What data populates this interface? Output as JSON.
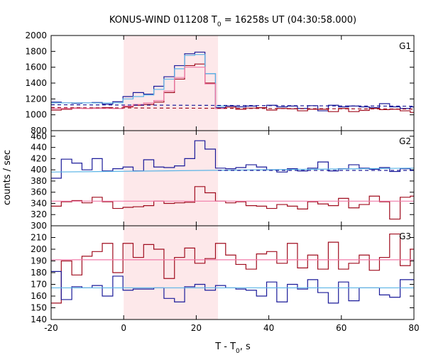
{
  "title": {
    "prefix": "KONUS-WIND 011208 T",
    "sub": "0",
    "suffix": " = 16258s UT (04:30:58.000)"
  },
  "xlabel": {
    "prefix": "T - T",
    "sub": "0",
    "suffix": ", s"
  },
  "ylabel": "counts / sec",
  "colors": {
    "pink_shade": "#fde8ea",
    "dark_blue": "#1a1a99",
    "dark_red": "#a00c1e",
    "light_blue": "#5ab4e6",
    "light_pink": "#f07aa8"
  },
  "chart_data": [
    {
      "type": "line",
      "panel": "G1",
      "x_range": [
        -20,
        80
      ],
      "ylim": [
        800,
        2000
      ],
      "yticks": [
        800,
        1000,
        1200,
        1400,
        1600,
        1800,
        2000
      ],
      "xticks": [
        -20,
        0,
        20,
        40,
        60,
        80
      ],
      "shaded_interval": [
        0,
        26
      ],
      "series": [
        {
          "color_key": "dark_blue",
          "step": true,
          "x": [
            -20,
            -17.2,
            -14.3,
            -11.5,
            -8.7,
            -5.9,
            -3.0,
            -0.2,
            2.6,
            5.5,
            8.3,
            11.1,
            14.0,
            16.8,
            19.6,
            22.4,
            25.3,
            28.1,
            30.9,
            33.7,
            36.6,
            39.4,
            42.2,
            45.1,
            47.9,
            50.7,
            53.5,
            56.4,
            59.2,
            62.0,
            64.9,
            67.7,
            70.5,
            73.3,
            76.2,
            79.0
          ],
          "y": [
            1160,
            1150,
            1145,
            1150,
            1155,
            1135,
            1165,
            1230,
            1280,
            1260,
            1360,
            1480,
            1620,
            1770,
            1790,
            1520,
            1090,
            1110,
            1100,
            1110,
            1090,
            1120,
            1100,
            1110,
            1080,
            1115,
            1050,
            1120,
            1100,
            1110,
            1100,
            1090,
            1140,
            1100,
            1080,
            1100
          ]
        },
        {
          "color_key": "dark_red",
          "step": true,
          "x": [
            -20,
            -17.2,
            -14.3,
            -11.5,
            -8.7,
            -5.9,
            -3.0,
            -0.2,
            2.6,
            5.5,
            8.3,
            11.1,
            14.0,
            16.8,
            19.6,
            22.4,
            25.3,
            28.1,
            30.9,
            33.7,
            36.6,
            39.4,
            42.2,
            45.1,
            47.9,
            50.7,
            53.5,
            56.4,
            59.2,
            62.0,
            64.9,
            67.7,
            70.5,
            73.3,
            76.2,
            79.0
          ],
          "y": [
            1060,
            1070,
            1085,
            1080,
            1085,
            1090,
            1080,
            1100,
            1120,
            1130,
            1160,
            1280,
            1450,
            1620,
            1640,
            1400,
            1080,
            1095,
            1070,
            1085,
            1090,
            1060,
            1080,
            1075,
            1050,
            1070,
            1070,
            1040,
            1080,
            1040,
            1055,
            1080,
            1065,
            1070,
            1050,
            1030
          ]
        },
        {
          "color_key": "light_blue",
          "step": true,
          "x": [
            -20,
            -17.2,
            -14.3,
            -11.5,
            -8.7,
            -5.9,
            -3.0,
            -0.2,
            2.6,
            5.5,
            8.3,
            11.1,
            14.0,
            16.8,
            19.6,
            22.4,
            25.3
          ],
          "y": [
            1150,
            1150,
            1150,
            1150,
            1150,
            1150,
            1150,
            1200,
            1230,
            1250,
            1320,
            1450,
            1580,
            1750,
            1760,
            1520,
            1110
          ]
        },
        {
          "color_key": "light_pink",
          "step": true,
          "x": [
            -20,
            -17.2,
            -14.3,
            -11.5,
            -8.7,
            -5.9,
            -3.0,
            -0.2,
            2.6,
            5.5,
            8.3,
            11.1,
            14.0,
            16.8,
            19.6,
            22.4,
            25.3
          ],
          "y": [
            1080,
            1080,
            1080,
            1080,
            1080,
            1080,
            1080,
            1110,
            1130,
            1150,
            1180,
            1300,
            1470,
            1600,
            1600,
            1390,
            1080
          ]
        },
        {
          "color_key": "dark_blue",
          "dashed": true,
          "x": [
            -20,
            80
          ],
          "y": [
            1127,
            1108
          ]
        },
        {
          "color_key": "dark_red",
          "dashed": true,
          "x": [
            -20,
            80
          ],
          "y": [
            1090,
            1072
          ]
        }
      ]
    },
    {
      "type": "line",
      "panel": "G2",
      "x_range": [
        -20,
        80
      ],
      "ylim": [
        300,
        470
      ],
      "yticks": [
        300,
        320,
        340,
        360,
        380,
        400,
        420,
        440,
        460
      ],
      "xticks": [
        -20,
        0,
        20,
        40,
        60,
        80
      ],
      "shaded_interval": [
        0,
        26
      ],
      "series": [
        {
          "color_key": "dark_blue",
          "step": true,
          "x": [
            -20,
            -17.2,
            -14.3,
            -11.5,
            -8.7,
            -5.9,
            -3.0,
            -0.2,
            2.6,
            5.5,
            8.3,
            11.1,
            14.0,
            16.8,
            19.6,
            22.4,
            25.3,
            28.1,
            30.9,
            33.7,
            36.6,
            39.4,
            42.2,
            45.1,
            47.9,
            50.7,
            53.5,
            56.4,
            59.2,
            62.0,
            64.9,
            67.7,
            70.5,
            73.3,
            76.2,
            79.0
          ],
          "y": [
            385,
            419,
            412,
            400,
            420,
            398,
            402,
            405,
            398,
            418,
            405,
            404,
            407,
            420,
            452,
            437,
            403,
            402,
            404,
            409,
            405,
            400,
            396,
            402,
            398,
            403,
            414,
            398,
            402,
            409,
            403,
            401,
            404,
            397,
            402,
            399
          ]
        },
        {
          "color_key": "dark_red",
          "step": true,
          "x": [
            -20,
            -17.2,
            -14.3,
            -11.5,
            -8.7,
            -5.9,
            -3.0,
            -0.2,
            2.6,
            5.5,
            8.3,
            11.1,
            14.0,
            16.8,
            19.6,
            22.4,
            25.3,
            28.1,
            30.9,
            33.7,
            36.6,
            39.4,
            42.2,
            45.1,
            47.9,
            50.7,
            53.5,
            56.4,
            59.2,
            62.0,
            64.9,
            67.7,
            70.5,
            73.3,
            76.2,
            79.0
          ],
          "y": [
            335,
            343,
            345,
            341,
            351,
            343,
            331,
            333,
            334,
            336,
            344,
            340,
            341,
            342,
            370,
            359,
            344,
            341,
            343,
            336,
            335,
            331,
            338,
            335,
            330,
            343,
            339,
            336,
            349,
            332,
            338,
            353,
            343,
            312,
            351,
            353
          ]
        },
        {
          "color_key": "light_blue",
          "x": [
            -20,
            80
          ],
          "y": [
            396,
            403
          ]
        },
        {
          "color_key": "light_pink",
          "x": [
            -20,
            80
          ],
          "y": [
            344,
            344
          ]
        },
        {
          "color_key": "dark_blue",
          "dashed": true,
          "x": [
            26,
            80
          ],
          "y": [
            399,
            399
          ]
        }
      ]
    },
    {
      "type": "line",
      "panel": "G3",
      "x_range": [
        -20,
        80
      ],
      "ylim": [
        140,
        220
      ],
      "yticks": [
        140,
        150,
        160,
        170,
        180,
        190,
        200,
        210
      ],
      "xticks": [
        -20,
        0,
        20,
        40,
        60,
        80
      ],
      "shaded_interval": [
        0,
        26
      ],
      "series": [
        {
          "color_key": "dark_red",
          "step": true,
          "x": [
            -20,
            -17.2,
            -14.3,
            -11.5,
            -8.7,
            -5.9,
            -3.0,
            -0.2,
            2.6,
            5.5,
            8.3,
            11.1,
            14.0,
            16.8,
            19.6,
            22.4,
            25.3,
            28.1,
            30.9,
            33.7,
            36.6,
            39.4,
            42.2,
            45.1,
            47.9,
            50.7,
            53.5,
            56.4,
            59.2,
            62.0,
            64.9,
            67.7,
            70.5,
            73.3,
            76.2,
            79.0
          ],
          "y": [
            154,
            190,
            178,
            194,
            198,
            205,
            180,
            205,
            193,
            204,
            200,
            175,
            193,
            201,
            188,
            192,
            205,
            195,
            187,
            183,
            196,
            198,
            188,
            205,
            184,
            195,
            183,
            206,
            183,
            188,
            195,
            182,
            193,
            213,
            186,
            200
          ]
        },
        {
          "color_key": "dark_blue",
          "step": true,
          "x": [
            -20,
            -17.2,
            -14.3,
            -11.5,
            -8.7,
            -5.9,
            -3.0,
            -0.2,
            2.6,
            5.5,
            8.3,
            11.1,
            14.0,
            16.8,
            19.6,
            22.4,
            25.3,
            28.1,
            30.9,
            33.7,
            36.6,
            39.4,
            42.2,
            45.1,
            47.9,
            50.7,
            53.5,
            56.4,
            59.2,
            62.0,
            64.9,
            67.7,
            70.5,
            73.3,
            76.2,
            79.0
          ],
          "y": [
            181,
            157,
            168,
            167,
            169,
            160,
            177,
            165,
            166,
            166,
            167,
            158,
            155,
            168,
            170,
            165,
            169,
            167,
            166,
            165,
            160,
            172,
            155,
            170,
            166,
            174,
            163,
            154,
            172,
            156,
            167,
            167,
            161,
            159,
            174,
            174
          ]
        },
        {
          "color_key": "light_blue",
          "x": [
            -20,
            80
          ],
          "y": [
            167,
            167
          ]
        },
        {
          "color_key": "light_pink",
          "x": [
            -20,
            80
          ],
          "y": [
            191,
            191
          ]
        }
      ]
    }
  ]
}
